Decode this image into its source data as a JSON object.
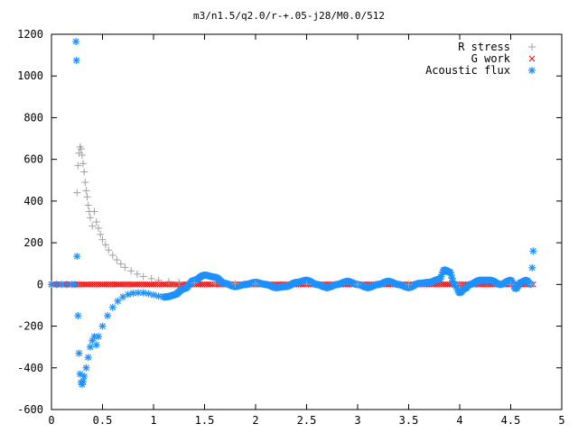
{
  "chart_data": {
    "type": "scatter",
    "title": "m3/n1.5/q2.0/r-+.05-j28/M0.0/512",
    "xlabel": "",
    "ylabel": "",
    "xlim": [
      0,
      5
    ],
    "ylim": [
      -600,
      1200
    ],
    "x_ticks": [
      "0",
      "0.5",
      "1",
      "1.5",
      "2",
      "2.5",
      "3",
      "3.5",
      "4",
      "4.5",
      "5"
    ],
    "y_ticks": [
      "-600",
      "-400",
      "-200",
      "0",
      "200",
      "400",
      "600",
      "800",
      "1000",
      "1200"
    ],
    "grid": false,
    "legend_position": "top-right",
    "series": [
      {
        "name": "R stress",
        "marker": "plus",
        "color": "#a0a0a0",
        "points": [
          [
            0.25,
            440
          ],
          [
            0.26,
            570
          ],
          [
            0.27,
            630
          ],
          [
            0.28,
            660
          ],
          [
            0.29,
            650
          ],
          [
            0.3,
            620
          ],
          [
            0.31,
            580
          ],
          [
            0.32,
            540
          ],
          [
            0.33,
            490
          ],
          [
            0.34,
            450
          ],
          [
            0.35,
            420
          ],
          [
            0.36,
            380
          ],
          [
            0.37,
            350
          ],
          [
            0.38,
            320
          ],
          [
            0.4,
            280
          ],
          [
            0.42,
            350
          ],
          [
            0.44,
            300
          ],
          [
            0.46,
            270
          ],
          [
            0.48,
            240
          ],
          [
            0.5,
            215
          ],
          [
            0.53,
            190
          ],
          [
            0.56,
            165
          ],
          [
            0.6,
            140
          ],
          [
            0.64,
            118
          ],
          [
            0.68,
            98
          ],
          [
            0.72,
            82
          ],
          [
            0.78,
            65
          ],
          [
            0.84,
            50
          ],
          [
            0.9,
            38
          ],
          [
            0.98,
            28
          ],
          [
            1.05,
            20
          ],
          [
            1.15,
            14
          ],
          [
            1.25,
            10
          ],
          [
            1.4,
            7
          ],
          [
            1.6,
            5
          ],
          [
            1.8,
            3
          ],
          [
            2.0,
            2
          ],
          [
            2.5,
            1
          ],
          [
            3.0,
            1
          ],
          [
            3.5,
            0.5
          ],
          [
            4.0,
            0.5
          ],
          [
            4.5,
            0.3
          ],
          [
            4.7,
            0.2
          ]
        ]
      },
      {
        "name": "G work",
        "marker": "cross",
        "color": "#ff0000",
        "x_range": [
          0.0,
          4.72
        ],
        "y_value": 0
      },
      {
        "name": "Acoustic flux",
        "marker": "star",
        "color": "#1e90ff",
        "points": [
          [
            0.0,
            0
          ],
          [
            0.05,
            0
          ],
          [
            0.1,
            0
          ],
          [
            0.15,
            0
          ],
          [
            0.2,
            0
          ],
          [
            0.23,
            0
          ],
          [
            0.24,
            1165
          ],
          [
            0.245,
            1075
          ],
          [
            0.25,
            135
          ],
          [
            0.26,
            -150
          ],
          [
            0.27,
            -330
          ],
          [
            0.28,
            -430
          ],
          [
            0.29,
            -470
          ],
          [
            0.3,
            -480
          ],
          [
            0.31,
            -465
          ],
          [
            0.32,
            -440
          ],
          [
            0.34,
            -400
          ],
          [
            0.36,
            -350
          ],
          [
            0.38,
            -300
          ],
          [
            0.4,
            -270
          ],
          [
            0.42,
            -250
          ],
          [
            0.44,
            -290
          ],
          [
            0.46,
            -250
          ],
          [
            0.5,
            -200
          ],
          [
            0.55,
            -150
          ],
          [
            0.6,
            -110
          ],
          [
            0.65,
            -80
          ],
          [
            0.7,
            -60
          ],
          [
            0.75,
            -48
          ],
          [
            0.8,
            -42
          ],
          [
            0.85,
            -40
          ],
          [
            0.9,
            -40
          ],
          [
            0.95,
            -44
          ],
          [
            1.0,
            -50
          ],
          [
            1.05,
            -56
          ],
          [
            1.1,
            -60
          ]
        ],
        "oscillation": {
          "x_range": [
            1.1,
            4.72
          ],
          "description_points": [
            [
              1.1,
              -60
            ],
            [
              1.15,
              -58
            ],
            [
              1.2,
              -50
            ],
            [
              1.3,
              -20
            ],
            [
              1.4,
              20
            ],
            [
              1.5,
              45
            ],
            [
              1.6,
              35
            ],
            [
              1.7,
              5
            ],
            [
              1.8,
              -10
            ],
            [
              1.9,
              0
            ],
            [
              2.0,
              10
            ],
            [
              2.1,
              0
            ],
            [
              2.2,
              -15
            ],
            [
              2.3,
              -10
            ],
            [
              2.4,
              10
            ],
            [
              2.5,
              20
            ],
            [
              2.6,
              0
            ],
            [
              2.7,
              -15
            ],
            [
              2.8,
              0
            ],
            [
              2.9,
              15
            ],
            [
              3.0,
              0
            ],
            [
              3.1,
              -15
            ],
            [
              3.2,
              0
            ],
            [
              3.3,
              15
            ],
            [
              3.4,
              0
            ],
            [
              3.5,
              -15
            ],
            [
              3.6,
              5
            ],
            [
              3.7,
              10
            ],
            [
              3.8,
              25
            ],
            [
              3.85,
              70
            ],
            [
              3.9,
              60
            ],
            [
              3.95,
              0
            ],
            [
              4.0,
              -40
            ],
            [
              4.05,
              -20
            ],
            [
              4.1,
              0
            ],
            [
              4.2,
              20
            ],
            [
              4.3,
              20
            ],
            [
              4.4,
              0
            ],
            [
              4.5,
              20
            ],
            [
              4.55,
              -20
            ],
            [
              4.6,
              10
            ],
            [
              4.65,
              20
            ],
            [
              4.7,
              0
            ],
            [
              4.72,
              160
            ]
          ]
        }
      }
    ]
  }
}
